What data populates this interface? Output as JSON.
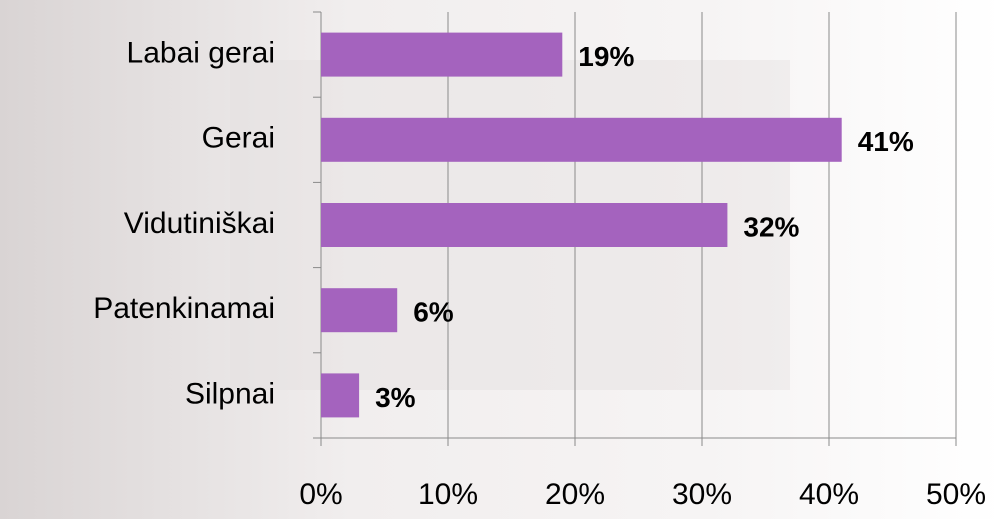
{
  "chart_data": {
    "type": "bar",
    "orientation": "horizontal",
    "categories": [
      "Labai gerai",
      "Gerai",
      "Vidutiniškai",
      "Patenkinamai",
      "Silpnai"
    ],
    "values": [
      19,
      41,
      32,
      6,
      3
    ],
    "value_labels": [
      "19%",
      "41%",
      "32%",
      "6%",
      "3%"
    ],
    "color": "#a463be",
    "xlim": [
      0,
      50
    ],
    "xticks": [
      {
        "value": 0,
        "label": "0%"
      },
      {
        "value": 10,
        "label": "10%"
      },
      {
        "value": 20,
        "label": "20%"
      },
      {
        "value": 30,
        "label": "30%"
      },
      {
        "value": 40,
        "label": "40%"
      },
      {
        "value": 50,
        "label": "50%"
      }
    ],
    "grid": true
  }
}
